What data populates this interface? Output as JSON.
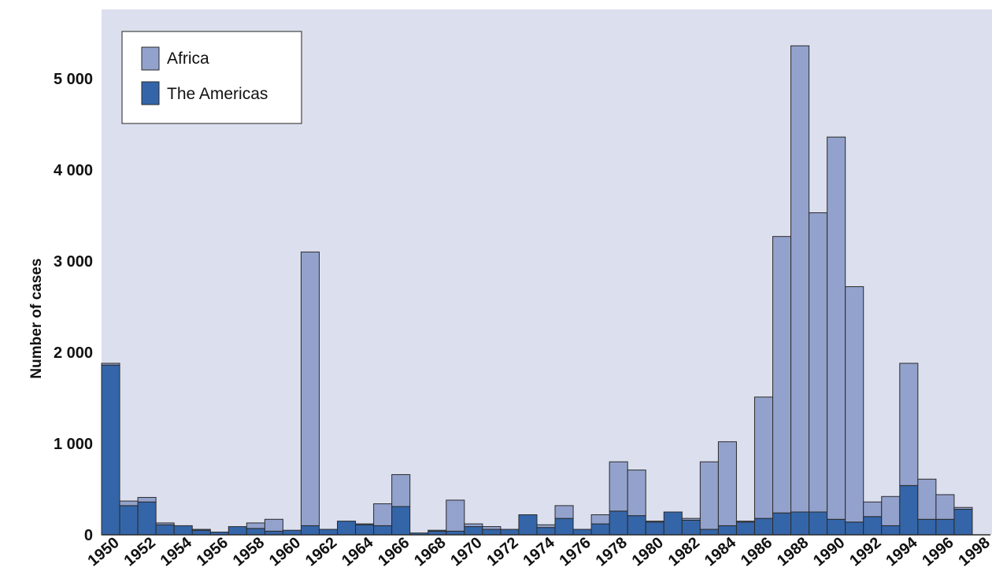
{
  "chart_data": {
    "type": "bar",
    "stacked": true,
    "ylabel": "Number of cases",
    "xlabel": "",
    "ylim": [
      0,
      5600
    ],
    "yticks": [
      0,
      1000,
      2000,
      3000,
      4000,
      5000
    ],
    "ytick_labels": [
      "0",
      "1 000",
      "2 000",
      "3 000",
      "4 000",
      "5 000"
    ],
    "xtick_labels": [
      "1950",
      "1952",
      "1954",
      "1956",
      "1958",
      "1960",
      "1962",
      "1964",
      "1966",
      "1968",
      "1970",
      "1972",
      "1974",
      "1976",
      "1978",
      "1980",
      "1982",
      "1984",
      "1986",
      "1988",
      "1990",
      "1992",
      "1994",
      "1996",
      "1998"
    ],
    "categories": [
      "1950",
      "1951",
      "1952",
      "1953",
      "1954",
      "1955",
      "1956",
      "1957",
      "1958",
      "1959",
      "1960",
      "1961",
      "1962",
      "1963",
      "1964",
      "1965",
      "1966",
      "1967",
      "1968",
      "1969",
      "1970",
      "1971",
      "1972",
      "1973",
      "1974",
      "1975",
      "1976",
      "1977",
      "1978",
      "1979",
      "1980",
      "1981",
      "1982",
      "1983",
      "1984",
      "1985",
      "1986",
      "1987",
      "1988",
      "1989",
      "1990",
      "1991",
      "1992",
      "1993",
      "1994",
      "1995",
      "1996",
      "1997",
      "1998"
    ],
    "series": [
      {
        "name": "The Americas",
        "color": "#3465a8",
        "values": [
          1860,
          320,
          360,
          110,
          100,
          50,
          30,
          90,
          70,
          40,
          50,
          100,
          60,
          150,
          110,
          100,
          310,
          20,
          40,
          40,
          90,
          60,
          60,
          220,
          80,
          180,
          60,
          120,
          260,
          210,
          140,
          250,
          160,
          60,
          100,
          140,
          180,
          240,
          250,
          250,
          170,
          140,
          200,
          100,
          540,
          170,
          170,
          280,
          0
        ]
      },
      {
        "name": "Africa",
        "color": "#93a2cc",
        "values": [
          20,
          50,
          50,
          20,
          0,
          10,
          0,
          0,
          60,
          130,
          0,
          3000,
          0,
          0,
          10,
          240,
          350,
          0,
          10,
          340,
          30,
          30,
          0,
          0,
          30,
          140,
          0,
          100,
          540,
          500,
          10,
          0,
          20,
          740,
          920,
          10,
          1330,
          3030,
          5110,
          3280,
          4190,
          2580,
          160,
          320,
          1340,
          440,
          270,
          20,
          0
        ]
      }
    ],
    "legend": {
      "placement": "top-left",
      "entries": [
        "Africa",
        "The Americas"
      ]
    },
    "grid": false,
    "colors": {
      "plot_background": "#dcdfee",
      "bar_border": "#2a2a2a"
    }
  }
}
